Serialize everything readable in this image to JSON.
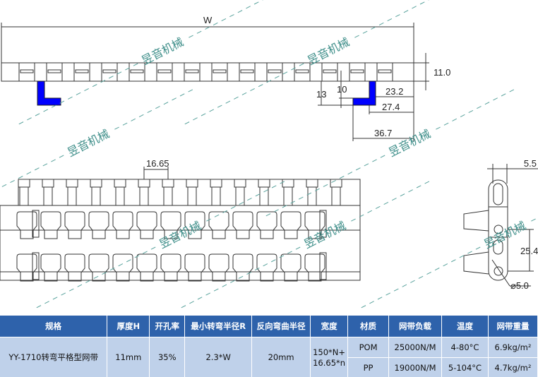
{
  "watermark": "昱音机械",
  "drawing": {
    "top_view": {
      "width_label": "W",
      "height_dim": "11.0",
      "dim_13": "13",
      "dim_10": "10",
      "dim_23_2": "23.2",
      "dim_27_4": "27.4",
      "dim_36_7": "36.7",
      "guide_color": "#0000ff"
    },
    "plan_view": {
      "pitch_dim": "16.65"
    },
    "side_view": {
      "dim_5_5": "5.5",
      "dim_25_4": "25.4",
      "hole_dim": "⌀5.0"
    }
  },
  "table": {
    "headers": [
      "规格",
      "厚度H",
      "开孔率",
      "最小转弯半径R",
      "反向弯曲半径",
      "宽度",
      "材质",
      "网带负载",
      "温度",
      "网带重量"
    ],
    "model": "YY-1710转弯平格型网带",
    "thickness": "11mm",
    "open_area": "35%",
    "min_turn_radius": "2.3*W",
    "back_bend_radius": "20mm",
    "width_line1": "150*N+",
    "width_line2": "16.65*n",
    "rows": [
      {
        "material": "POM",
        "load": "25000N/M",
        "temperature": "4-80°C",
        "weight": "6.9kg/m²"
      },
      {
        "material": "PP",
        "load": "19000N/M",
        "temperature": "5-104°C",
        "weight": "4.7kg/m²"
      }
    ]
  }
}
